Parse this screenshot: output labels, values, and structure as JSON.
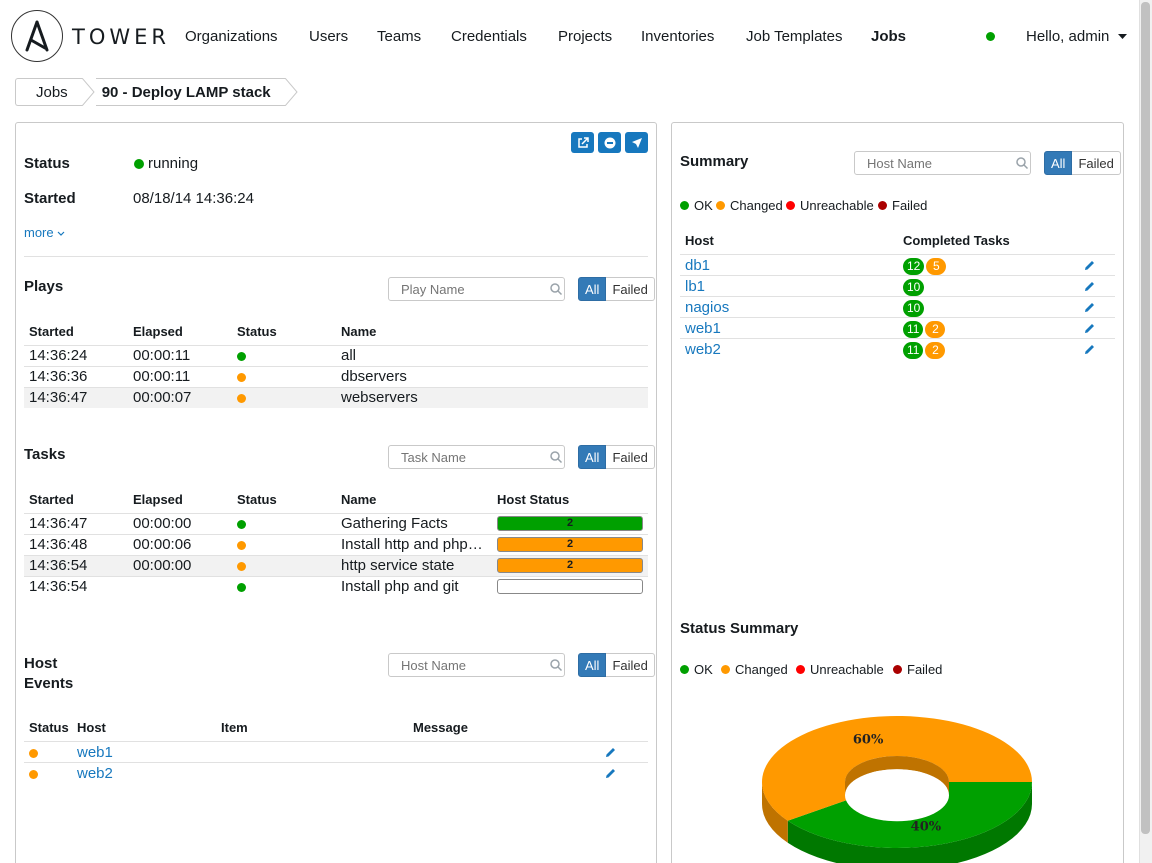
{
  "brand": {
    "name": "TOWER"
  },
  "nav": {
    "items": [
      {
        "label": "Organizations"
      },
      {
        "label": "Users"
      },
      {
        "label": "Teams"
      },
      {
        "label": "Credentials"
      },
      {
        "label": "Projects"
      },
      {
        "label": "Inventories"
      },
      {
        "label": "Job Templates"
      },
      {
        "label": "Jobs",
        "active": true
      }
    ],
    "user_greeting": "Hello, admin"
  },
  "breadcrumb": {
    "parent": "Jobs",
    "current": "90 - Deploy LAMP stack"
  },
  "job": {
    "status_label": "Status",
    "status_value": "running",
    "started_label": "Started",
    "started_value": "08/18/14 14:36:24",
    "more_link": "more"
  },
  "filters": {
    "all": "All",
    "failed": "Failed"
  },
  "plays": {
    "title": "Plays",
    "search_placeholder": "Play Name",
    "columns": [
      "Started",
      "Elapsed",
      "Status",
      "Name"
    ],
    "rows": [
      {
        "started": "14:36:24",
        "elapsed": "00:00:11",
        "status": "ok",
        "name": "all"
      },
      {
        "started": "14:36:36",
        "elapsed": "00:00:11",
        "status": "changed",
        "name": "dbservers"
      },
      {
        "started": "14:36:47",
        "elapsed": "00:00:07",
        "status": "changed",
        "name": "webservers"
      }
    ]
  },
  "tasks": {
    "title": "Tasks",
    "search_placeholder": "Task Name",
    "columns": [
      "Started",
      "Elapsed",
      "Status",
      "Name",
      "Host Status"
    ],
    "rows": [
      {
        "started": "14:36:47",
        "elapsed": "00:00:00",
        "status": "ok",
        "name": "Gathering Facts",
        "host_status": "2",
        "bar_color": "#00a000"
      },
      {
        "started": "14:36:48",
        "elapsed": "00:00:06",
        "status": "changed",
        "name": "Install http and php…",
        "host_status": "2",
        "bar_color": "#ff9900"
      },
      {
        "started": "14:36:54",
        "elapsed": "00:00:00",
        "status": "changed",
        "name": "http service state",
        "host_status": "2",
        "bar_color": "#ff9900"
      },
      {
        "started": "14:36:54",
        "elapsed": "",
        "status": "ok",
        "name": "Install php and git",
        "host_status": "",
        "bar_color": "#ffffff"
      }
    ]
  },
  "host_events": {
    "title_line1": "Host",
    "title_line2": "Events",
    "search_placeholder": "Host Name",
    "columns": [
      "Status",
      "Host",
      "Item",
      "Message"
    ],
    "rows": [
      {
        "status": "changed",
        "host": "web1"
      },
      {
        "status": "changed",
        "host": "web2"
      }
    ]
  },
  "summary": {
    "title": "Summary",
    "search_placeholder": "Host Name",
    "legend": [
      "OK",
      "Changed",
      "Unreachable",
      "Failed"
    ],
    "columns": [
      "Host",
      "Completed Tasks"
    ],
    "rows": [
      {
        "host": "db1",
        "ok": "12",
        "changed": "5"
      },
      {
        "host": "lb1",
        "ok": "10",
        "changed": ""
      },
      {
        "host": "nagios",
        "ok": "10",
        "changed": ""
      },
      {
        "host": "web1",
        "ok": "11",
        "changed": "2"
      },
      {
        "host": "web2",
        "ok": "11",
        "changed": "2"
      }
    ]
  },
  "status_summary": {
    "title": "Status Summary",
    "legend": [
      "OK",
      "Changed",
      "Unreachable",
      "Failed"
    ]
  },
  "colors": {
    "ok": "#00a000",
    "changed": "#ff9900",
    "unreachable": "#ff0000",
    "failed": "#aa0000",
    "link": "#1778be",
    "primary": "#337ab7"
  },
  "icons": [
    "external-link-icon",
    "minus-circle-icon",
    "rocket-icon",
    "search-icon",
    "pencil-icon",
    "caret-down-icon",
    "chevron-down-icon"
  ],
  "chart_data": {
    "type": "pie",
    "categories": [
      "Changed",
      "OK"
    ],
    "values": [
      60,
      40
    ],
    "labels": [
      "60%",
      "40%"
    ],
    "colors": [
      "#ff9900",
      "#00a000"
    ]
  }
}
